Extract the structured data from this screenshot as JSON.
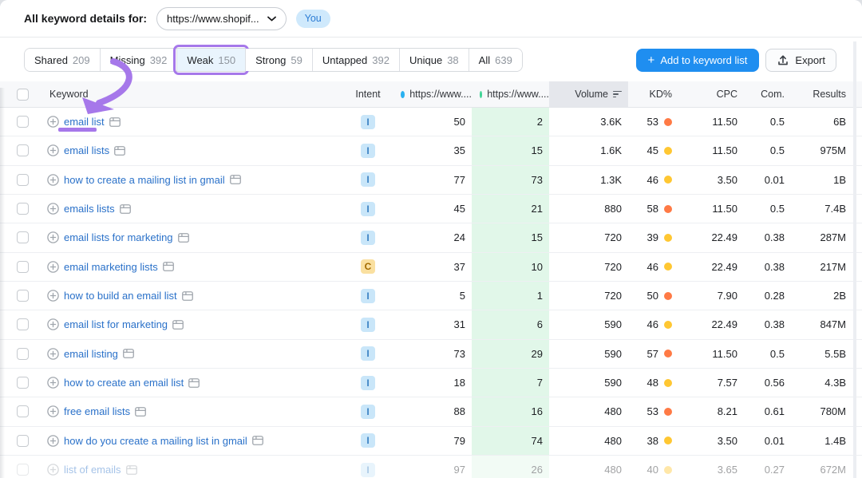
{
  "header": {
    "label": "All keyword details for:",
    "domain_dropdown": "https://www.shopif...",
    "you_badge": "You"
  },
  "tabs": [
    {
      "label": "Shared",
      "count": "209",
      "active": false
    },
    {
      "label": "Missing",
      "count": "392",
      "active": false
    },
    {
      "label": "Weak",
      "count": "150",
      "active": true
    },
    {
      "label": "Strong",
      "count": "59",
      "active": false
    },
    {
      "label": "Untapped",
      "count": "392",
      "active": false
    },
    {
      "label": "Unique",
      "count": "38",
      "active": false
    },
    {
      "label": "All",
      "count": "639",
      "active": false
    }
  ],
  "actions": {
    "add_to_list": "Add to keyword list",
    "export": "Export"
  },
  "table": {
    "columns": {
      "keyword": "Keyword",
      "intent": "Intent",
      "url_you": "https://www....",
      "url_competitor": "https://www....",
      "volume": "Volume",
      "kd": "KD%",
      "cpc": "CPC",
      "com": "Com.",
      "results": "Results"
    },
    "rows": [
      {
        "keyword": "email list",
        "intent": "I",
        "pos1": "50",
        "pos2": "2",
        "volume": "3.6K",
        "kd": "53",
        "kd_level": "hard",
        "cpc": "11.50",
        "com": "0.5",
        "results": "6B",
        "annotated": true,
        "faded": false
      },
      {
        "keyword": "email lists",
        "intent": "I",
        "pos1": "35",
        "pos2": "15",
        "volume": "1.6K",
        "kd": "45",
        "kd_level": "possible",
        "cpc": "11.50",
        "com": "0.5",
        "results": "975M",
        "annotated": false,
        "faded": false
      },
      {
        "keyword": "how to create a mailing list in gmail",
        "intent": "I",
        "pos1": "77",
        "pos2": "73",
        "volume": "1.3K",
        "kd": "46",
        "kd_level": "possible",
        "cpc": "3.50",
        "com": "0.01",
        "results": "1B",
        "annotated": false,
        "faded": false
      },
      {
        "keyword": "emails lists",
        "intent": "I",
        "pos1": "45",
        "pos2": "21",
        "volume": "880",
        "kd": "58",
        "kd_level": "hard",
        "cpc": "11.50",
        "com": "0.5",
        "results": "7.4B",
        "annotated": false,
        "faded": false
      },
      {
        "keyword": "email lists for marketing",
        "intent": "I",
        "pos1": "24",
        "pos2": "15",
        "volume": "720",
        "kd": "39",
        "kd_level": "possible",
        "cpc": "22.49",
        "com": "0.38",
        "results": "287M",
        "annotated": false,
        "faded": false
      },
      {
        "keyword": "email marketing lists",
        "intent": "C",
        "pos1": "37",
        "pos2": "10",
        "volume": "720",
        "kd": "46",
        "kd_level": "possible",
        "cpc": "22.49",
        "com": "0.38",
        "results": "217M",
        "annotated": false,
        "faded": false
      },
      {
        "keyword": "how to build an email list",
        "intent": "I",
        "pos1": "5",
        "pos2": "1",
        "volume": "720",
        "kd": "50",
        "kd_level": "hard",
        "cpc": "7.90",
        "com": "0.28",
        "results": "2B",
        "annotated": false,
        "faded": false
      },
      {
        "keyword": "email list for marketing",
        "intent": "I",
        "pos1": "31",
        "pos2": "6",
        "volume": "590",
        "kd": "46",
        "kd_level": "possible",
        "cpc": "22.49",
        "com": "0.38",
        "results": "847M",
        "annotated": false,
        "faded": false
      },
      {
        "keyword": "email listing",
        "intent": "I",
        "pos1": "73",
        "pos2": "29",
        "volume": "590",
        "kd": "57",
        "kd_level": "hard",
        "cpc": "11.50",
        "com": "0.5",
        "results": "5.5B",
        "annotated": false,
        "faded": false
      },
      {
        "keyword": "how to create an email list",
        "intent": "I",
        "pos1": "18",
        "pos2": "7",
        "volume": "590",
        "kd": "48",
        "kd_level": "possible",
        "cpc": "7.57",
        "com": "0.56",
        "results": "4.3B",
        "annotated": false,
        "faded": false
      },
      {
        "keyword": "free email lists",
        "intent": "I",
        "pos1": "88",
        "pos2": "16",
        "volume": "480",
        "kd": "53",
        "kd_level": "hard",
        "cpc": "8.21",
        "com": "0.61",
        "results": "780M",
        "annotated": false,
        "faded": false
      },
      {
        "keyword": "how do you create a mailing list in gmail",
        "intent": "I",
        "pos1": "79",
        "pos2": "74",
        "volume": "480",
        "kd": "38",
        "kd_level": "possible",
        "cpc": "3.50",
        "com": "0.01",
        "results": "1.4B",
        "annotated": false,
        "faded": false
      },
      {
        "keyword": "list of emails",
        "intent": "I",
        "pos1": "97",
        "pos2": "26",
        "volume": "480",
        "kd": "40",
        "kd_level": "possible",
        "cpc": "3.65",
        "com": "0.27",
        "results": "672M",
        "annotated": false,
        "faded": true
      }
    ]
  },
  "colors": {
    "accent_purple": "#a678ea",
    "link_blue": "#2a71c9",
    "dot_you": "#29b1f0",
    "dot_competitor": "#3fd495",
    "kd_hard": "#ff7a45",
    "kd_possible": "#ffc732",
    "primary_button": "#1f8ef0",
    "green_col_bg": "#e1f7e9"
  }
}
